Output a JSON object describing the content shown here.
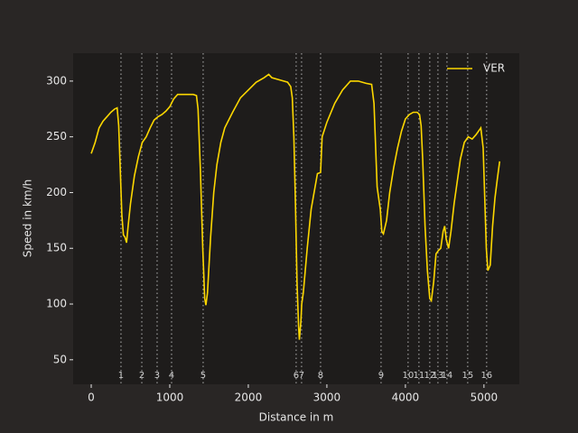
{
  "chart_data": {
    "type": "line",
    "xlabel": "Distance in m",
    "ylabel": "Speed in km/h",
    "x": [
      0,
      50,
      100,
      150,
      200,
      250,
      300,
      330,
      350,
      370,
      390,
      410,
      430,
      450,
      470,
      500,
      550,
      600,
      650,
      700,
      750,
      800,
      850,
      900,
      950,
      1000,
      1050,
      1100,
      1200,
      1300,
      1340,
      1360,
      1390,
      1420,
      1445,
      1460,
      1480,
      1520,
      1560,
      1600,
      1650,
      1700,
      1800,
      1900,
      2000,
      2100,
      2200,
      2260,
      2300,
      2400,
      2500,
      2540,
      2560,
      2580,
      2600,
      2620,
      2640,
      2650,
      2670,
      2680,
      2700,
      2750,
      2800,
      2850,
      2880,
      2920,
      2940,
      3000,
      3100,
      3200,
      3300,
      3400,
      3500,
      3570,
      3600,
      3640,
      3680,
      3700,
      3720,
      3760,
      3800,
      3850,
      3900,
      3950,
      4000,
      4050,
      4100,
      4150,
      4180,
      4200,
      4220,
      4250,
      4280,
      4310,
      4330,
      4360,
      4390,
      4420,
      4450,
      4480,
      4500,
      4520,
      4550,
      4580,
      4620,
      4660,
      4700,
      4750,
      4800,
      4850,
      4900,
      4960,
      4990,
      5010,
      5030,
      5050,
      5080,
      5110,
      5140,
      5170,
      5200
    ],
    "series": [
      {
        "name": "VER",
        "color": "#fcd700",
        "values": [
          235,
          245,
          258,
          264,
          268,
          272,
          275,
          276,
          260,
          220,
          180,
          162,
          160,
          155,
          170,
          190,
          215,
          232,
          245,
          250,
          258,
          265,
          268,
          270,
          273,
          277,
          284,
          288,
          288,
          288,
          287,
          275,
          220,
          150,
          105,
          99,
          110,
          160,
          200,
          225,
          245,
          258,
          272,
          285,
          292,
          299,
          303,
          306,
          303,
          301,
          299,
          295,
          285,
          250,
          190,
          120,
          80,
          68,
          85,
          100,
          110,
          150,
          185,
          205,
          217,
          218,
          250,
          263,
          280,
          292,
          300,
          300,
          298,
          297,
          280,
          205,
          185,
          165,
          163,
          175,
          200,
          222,
          240,
          255,
          266,
          270,
          272,
          272,
          270,
          260,
          230,
          170,
          130,
          105,
          103,
          120,
          145,
          148,
          150,
          165,
          170,
          158,
          150,
          165,
          190,
          210,
          230,
          245,
          250,
          248,
          252,
          258,
          240,
          195,
          150,
          130,
          135,
          170,
          195,
          212,
          228
        ]
      }
    ],
    "corners": {
      "labels": [
        "1",
        "2",
        "3",
        "4",
        "5",
        "6",
        "7",
        "8",
        "9",
        "10",
        "11",
        "12",
        "13",
        "14",
        "15",
        "16"
      ],
      "distances": [
        379,
        644,
        839,
        1023,
        1425,
        2609,
        2678,
        2920,
        3690,
        4034,
        4172,
        4310,
        4414,
        4529,
        4793,
        5034
      ]
    },
    "xlim": [
      -230,
      5450
    ],
    "ylim": [
      28,
      325
    ],
    "xticks": [
      0,
      1000,
      2000,
      3000,
      4000,
      5000
    ],
    "yticks": [
      50,
      100,
      150,
      200,
      250,
      300
    ],
    "legend": "upper right"
  }
}
